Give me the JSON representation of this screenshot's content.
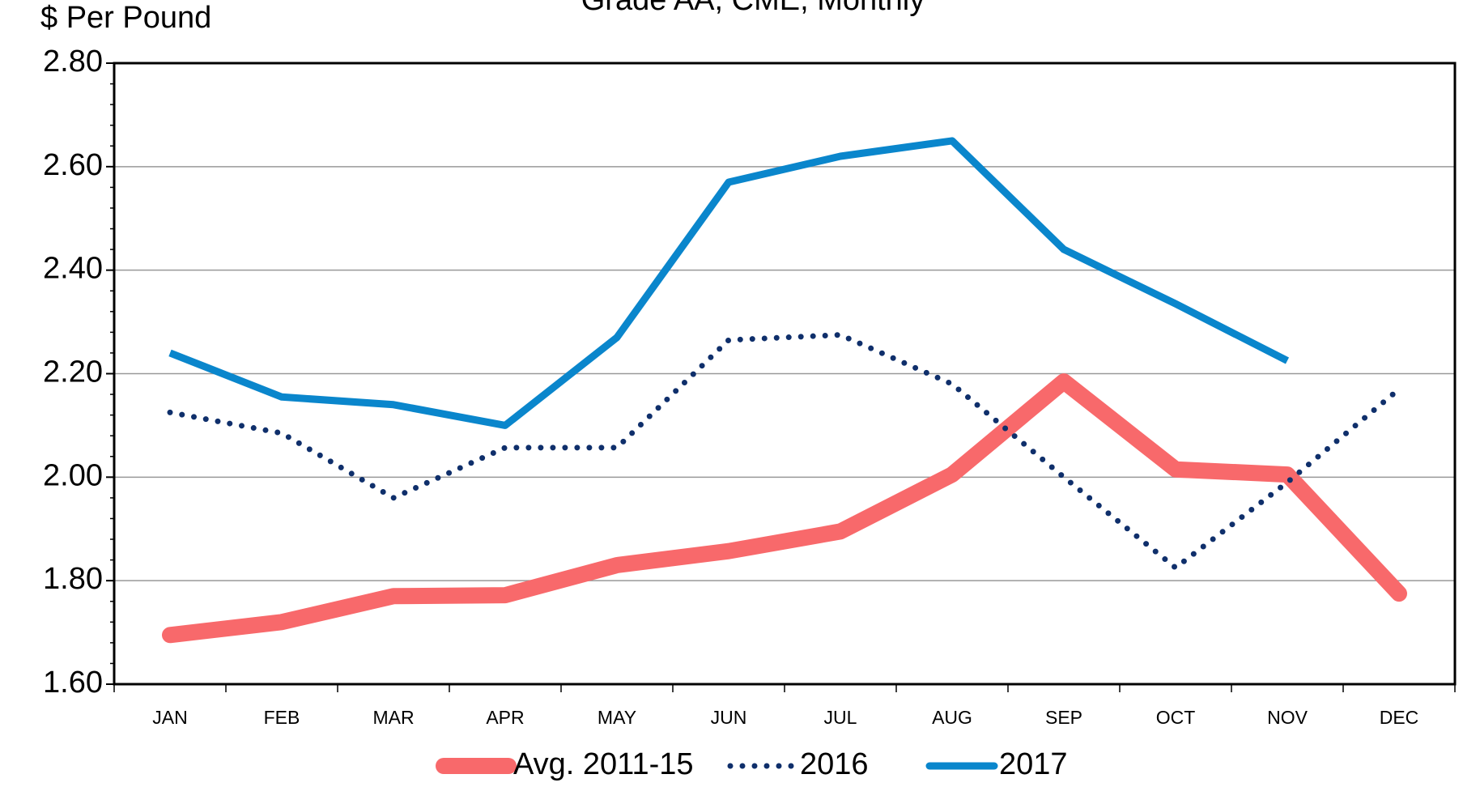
{
  "chart_data": {
    "type": "line",
    "title": "Grade AA, CME, Monthly",
    "y_label": "$ Per Pound",
    "categories": [
      "JAN",
      "FEB",
      "MAR",
      "APR",
      "MAY",
      "JUN",
      "JUL",
      "AUG",
      "SEP",
      "OCT",
      "NOV",
      "DEC"
    ],
    "series": [
      {
        "name": "Avg. 2011-15",
        "color": "#f8696b",
        "style": "solid-thick",
        "values": [
          1.695,
          1.72,
          1.77,
          1.772,
          1.83,
          1.857,
          1.895,
          2.005,
          2.185,
          2.015,
          2.005,
          1.775
        ]
      },
      {
        "name": "2016",
        "color": "#0f2f6b",
        "style": "dotted",
        "values": [
          2.125,
          2.085,
          1.96,
          2.057,
          2.057,
          2.265,
          2.275,
          2.18,
          2.0,
          1.825,
          1.99,
          2.17
        ]
      },
      {
        "name": "2017",
        "color": "#0a86cc",
        "style": "solid",
        "values": [
          2.24,
          2.155,
          2.14,
          2.1,
          2.27,
          2.57,
          2.62,
          2.65,
          2.44,
          2.335,
          2.225,
          null
        ]
      }
    ],
    "ylim": [
      1.6,
      2.8
    ],
    "yticks": [
      {
        "value": 1.6,
        "label": "1.60"
      },
      {
        "value": 1.8,
        "label": "1.80"
      },
      {
        "value": 2.0,
        "label": "2.00"
      },
      {
        "value": 2.2,
        "label": "2.20"
      },
      {
        "value": 2.4,
        "label": "2.40"
      },
      {
        "value": 2.6,
        "label": "2.60"
      },
      {
        "value": 2.8,
        "label": "2.80"
      }
    ],
    "grid": true,
    "legend": "bottom"
  }
}
